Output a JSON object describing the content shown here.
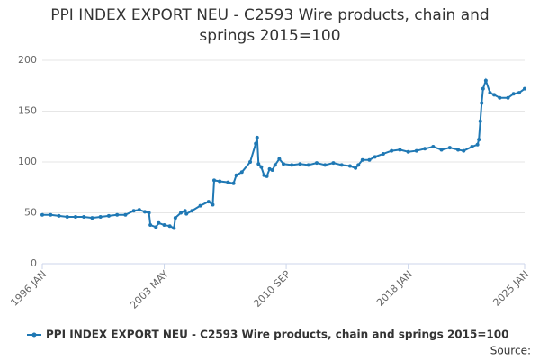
{
  "chart_data": {
    "type": "line",
    "title": "PPI INDEX EXPORT NEU - C2593 Wire products, chain and springs 2015=100",
    "source": "Source:",
    "x": [
      "1996 JAN",
      "1996 JUL",
      "1997 JAN",
      "1997 JUL",
      "1998 JAN",
      "1998 JUL",
      "1999 JAN",
      "1999 JUL",
      "2000 JAN",
      "2000 JUL",
      "2001 JAN",
      "2001 JUL",
      "2001 NOV",
      "2002 MAR",
      "2002 JUN",
      "2002 JUL",
      "2002 NOV",
      "2003 JAN",
      "2003 MAY",
      "2003 SEP",
      "2003 DEC",
      "2004 JAN",
      "2004 MAY",
      "2004 AUG",
      "2004 SEP",
      "2005 JAN",
      "2005 JUL",
      "2006 JAN",
      "2006 APR",
      "2006 MAY",
      "2006 SEP",
      "2007 MAR",
      "2007 JUL",
      "2007 SEP",
      "2008 JAN",
      "2008 JUL",
      "2008 NOV",
      "2008 DEC",
      "2009 JAN",
      "2009 MAR",
      "2009 MAY",
      "2009 JUL",
      "2009 SEP",
      "2009 NOV",
      "2010 JAN",
      "2010 APR",
      "2010 JUL",
      "2011 JAN",
      "2011 JUL",
      "2012 JAN",
      "2012 JUL",
      "2013 JAN",
      "2013 JUL",
      "2014 JAN",
      "2014 JUL",
      "2014 NOV",
      "2015 JAN",
      "2015 APR",
      "2015 SEP",
      "2016 JAN",
      "2016 JUL",
      "2017 JAN",
      "2017 JUL",
      "2018 JAN",
      "2018 JUL",
      "2019 JAN",
      "2019 JUL",
      "2020 JAN",
      "2020 JUL",
      "2021 JAN",
      "2021 MAY",
      "2021 NOV",
      "2022 MAR",
      "2022 APR",
      "2022 MAY",
      "2022 JUN",
      "2022 JUL",
      "2022 SEP",
      "2022 DEC",
      "2023 MAR",
      "2023 JUL",
      "2024 JAN",
      "2024 MAY",
      "2024 SEP",
      "2025 JAN"
    ],
    "series": [
      {
        "name": "PPI INDEX EXPORT NEU - C2593 Wire products, chain and springs 2015=100",
        "color": "#1f78b4",
        "values": [
          48,
          48,
          47,
          46,
          46,
          46,
          45,
          46,
          47,
          48,
          48,
          52,
          53,
          51,
          50,
          38,
          36,
          40,
          38,
          37,
          35,
          45,
          50,
          52,
          49,
          52,
          57,
          61,
          58,
          82,
          81,
          80,
          79,
          87,
          90,
          100,
          118,
          124,
          98,
          95,
          87,
          86,
          93,
          92,
          97,
          103,
          98,
          97,
          98,
          97,
          99,
          97,
          99,
          97,
          96,
          94,
          97,
          102,
          102,
          105,
          108,
          111,
          112,
          110,
          111,
          113,
          115,
          112,
          114,
          112,
          111,
          115,
          117,
          122,
          140,
          158,
          172,
          180,
          168,
          166,
          163,
          163,
          167,
          168,
          172
        ]
      }
    ],
    "xlim": [
      "1996 JAN",
      "2025 JAN"
    ],
    "xticks": [
      "1996 JAN",
      "2003 MAY",
      "2010 SEP",
      "2018 JAN",
      "2025 JAN"
    ],
    "ylim": [
      0,
      200
    ],
    "yticks": [
      0,
      50,
      100,
      150,
      200
    ],
    "grid": true
  }
}
